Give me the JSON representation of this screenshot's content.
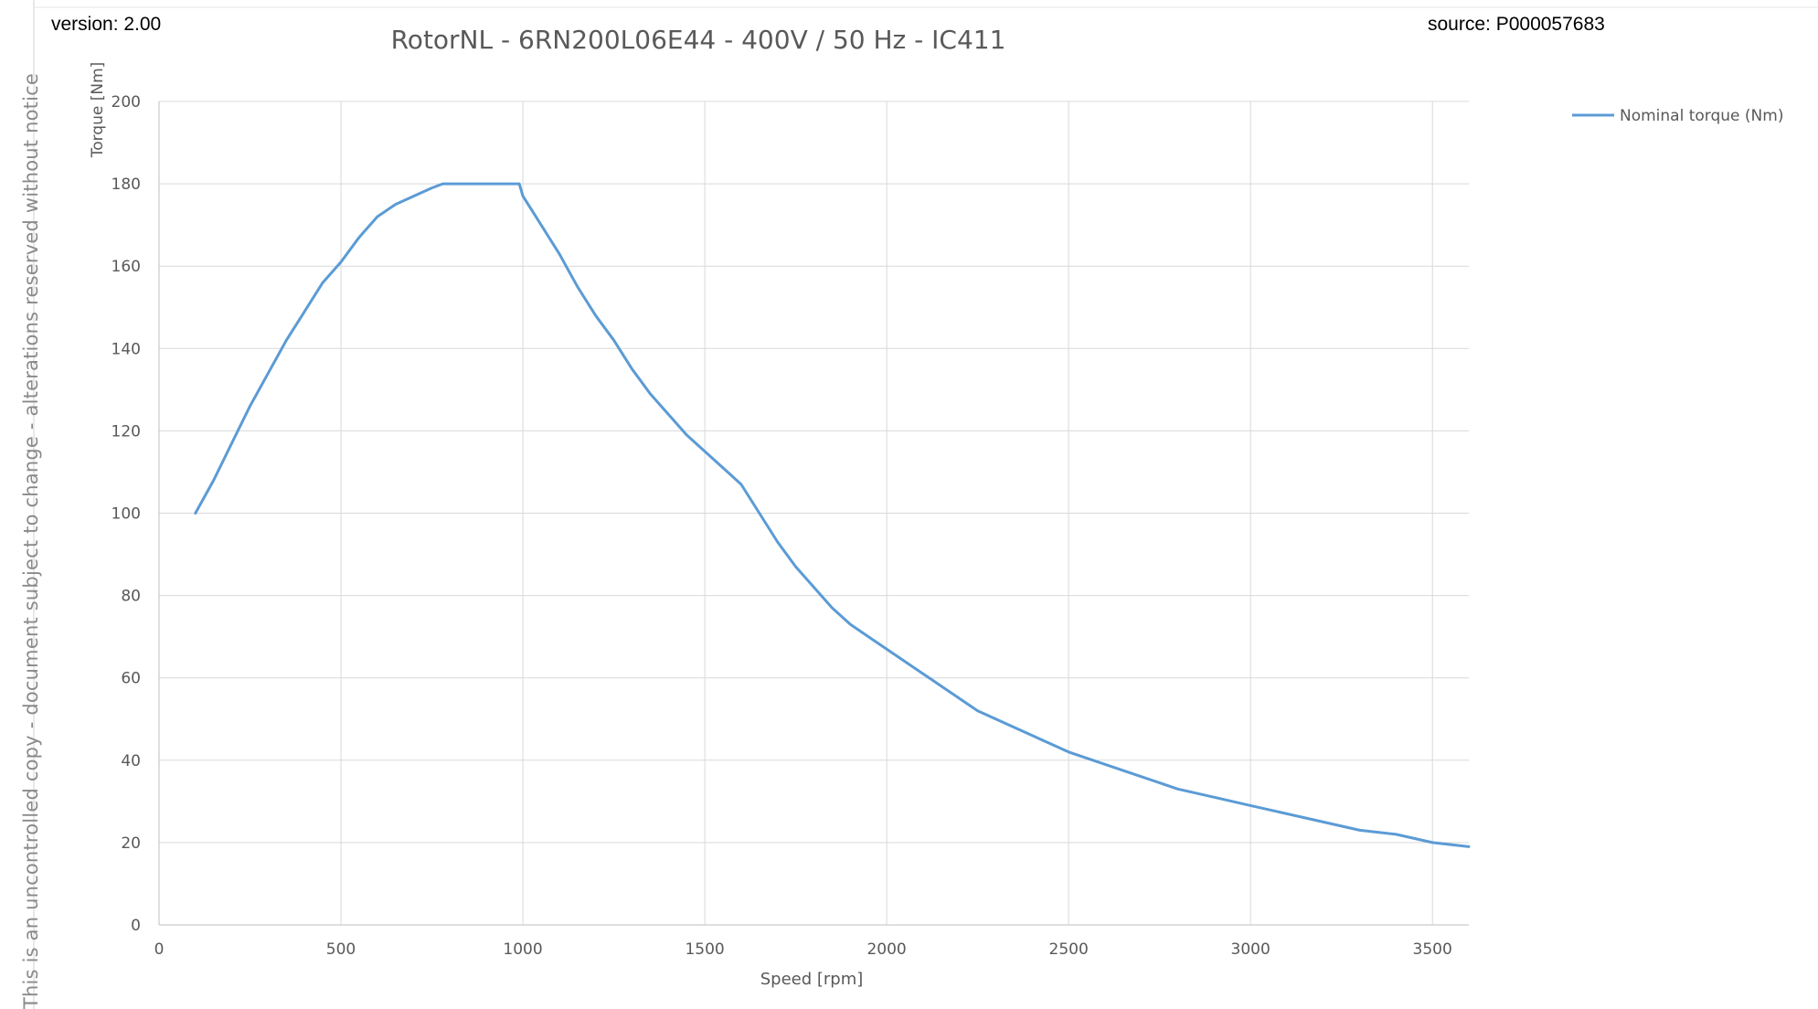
{
  "header": {
    "version": "version: 2.00",
    "source": "source: P000057683"
  },
  "side_note": "This is an uncontrolled copy - document subject to change - alterations reserved without notice",
  "chart_data": {
    "type": "line",
    "title": "RotorNL - 6RN200L06E44 - 400V / 50 Hz - IC411",
    "xlabel": "Speed [rpm]",
    "ylabel": "Torque [Nm]",
    "xlim": [
      0,
      3600
    ],
    "ylim": [
      0,
      200
    ],
    "xticks": [
      0,
      500,
      1000,
      1500,
      2000,
      2500,
      3000,
      3500
    ],
    "yticks": [
      0,
      20,
      40,
      60,
      80,
      100,
      120,
      140,
      160,
      180,
      200
    ],
    "grid": true,
    "legend_position": "top-right",
    "line_color": "#5b9bd5",
    "series": [
      {
        "name": "Nominal torque (Nm)",
        "x": [
          100,
          150,
          200,
          250,
          300,
          350,
          400,
          450,
          500,
          550,
          600,
          650,
          700,
          750,
          780,
          850,
          900,
          950,
          990,
          1000,
          1050,
          1100,
          1150,
          1200,
          1250,
          1300,
          1350,
          1400,
          1450,
          1500,
          1550,
          1600,
          1650,
          1700,
          1750,
          1800,
          1850,
          1900,
          1950,
          2000,
          2050,
          2100,
          2150,
          2200,
          2250,
          2300,
          2350,
          2400,
          2450,
          2500,
          2600,
          2700,
          2800,
          2900,
          3000,
          3100,
          3200,
          3300,
          3400,
          3500,
          3600
        ],
        "y": [
          100,
          108,
          117,
          126,
          134,
          142,
          149,
          156,
          161,
          167,
          172,
          175,
          177,
          179,
          180,
          180,
          180,
          180,
          180,
          177,
          170,
          163,
          155,
          148,
          142,
          135,
          129,
          124,
          119,
          115,
          111,
          107,
          100,
          93,
          87,
          82,
          77,
          73,
          70,
          67,
          64,
          61,
          58,
          55,
          52,
          50,
          48,
          46,
          44,
          42,
          39,
          36,
          33,
          31,
          29,
          27,
          25,
          23,
          22,
          20,
          19
        ]
      }
    ]
  }
}
